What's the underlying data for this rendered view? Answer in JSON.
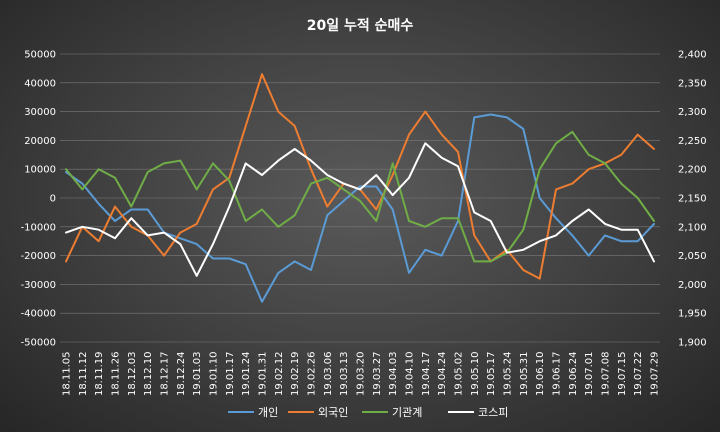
{
  "chart_data": {
    "type": "line",
    "title": "20일 누적 순매수",
    "xlabel": "",
    "ylabel": "",
    "y_left": {
      "min": -50000,
      "max": 50000,
      "step": 10000,
      "ticks": [
        "50000",
        "40000",
        "30000",
        "20000",
        "10000",
        "0",
        "-10000",
        "-20000",
        "-30000",
        "-40000",
        "-50000"
      ]
    },
    "y_right": {
      "min": 1900,
      "max": 2400,
      "step": 50,
      "ticks": [
        "2,400",
        "2,350",
        "2,300",
        "2,250",
        "2,200",
        "2,150",
        "2,100",
        "2,050",
        "2,000",
        "1,950",
        "1,900"
      ]
    },
    "x_labels": [
      "18.11.05",
      "18.11.12",
      "18.11.19",
      "18.11.26",
      "18.12.03",
      "18.12.10",
      "18.12.17",
      "18.12.24",
      "19.01.03",
      "19.01.10",
      "19.01.17",
      "19.01.24",
      "19.01.31",
      "19.02.12",
      "19.02.19",
      "19.02.26",
      "19.03.06",
      "19.03.13",
      "19.03.20",
      "19.03.27",
      "19.04.03",
      "19.04.10",
      "19.04.17",
      "19.04.24",
      "19.05.02",
      "19.05.10",
      "19.05.17",
      "19.05.24",
      "19.05.31",
      "19.06.10",
      "19.06.17",
      "19.06.24",
      "19.07.01",
      "19.07.08",
      "19.07.15",
      "19.07.22",
      "19.07.29"
    ],
    "grid": "horizontal",
    "legend_position": "bottom",
    "series": [
      {
        "name": "개인",
        "axis": "left",
        "color": "#5b9bd5",
        "values": [
          9000,
          5000,
          -2000,
          -8000,
          -4000,
          -4000,
          -12000,
          -14000,
          -16000,
          -21000,
          -21000,
          -23000,
          -36000,
          -26000,
          -22000,
          -25000,
          -6000,
          -1000,
          4000,
          4000,
          -4000,
          -26000,
          -18000,
          -20000,
          -8000,
          28000,
          29000,
          28000,
          24000,
          0,
          -7000,
          -13000,
          -20000,
          -13000,
          -15000,
          -15000,
          -9000
        ]
      },
      {
        "name": "외국인",
        "axis": "left",
        "color": "#ed7d31",
        "values": [
          -22000,
          -10000,
          -15000,
          -3000,
          -10000,
          -13000,
          -20000,
          -12000,
          -9000,
          3000,
          7000,
          25000,
          43000,
          30000,
          25000,
          10000,
          -3000,
          5000,
          3000,
          -4000,
          8000,
          22000,
          30000,
          22000,
          16000,
          -13000,
          -22000,
          -18000,
          -25000,
          -28000,
          3000,
          5000,
          10000,
          12000,
          15000,
          22000,
          17000
        ]
      },
      {
        "name": "기관계",
        "axis": "left",
        "color": "#70ad47",
        "values": [
          10000,
          3000,
          10000,
          7000,
          -3000,
          9000,
          12000,
          13000,
          3000,
          12000,
          6000,
          -8000,
          -4000,
          -10000,
          -6000,
          5000,
          7000,
          3000,
          -1000,
          -8000,
          12000,
          -8000,
          -10000,
          -7000,
          -7000,
          -22000,
          -22000,
          -19000,
          -11000,
          10000,
          19000,
          23000,
          15000,
          12000,
          5000,
          0,
          -8000
        ]
      },
      {
        "name": "코스피",
        "axis": "right",
        "color": "#ffffff",
        "values": [
          2090,
          2100,
          2095,
          2080,
          2115,
          2085,
          2090,
          2070,
          2015,
          2070,
          2135,
          2210,
          2190,
          2215,
          2235,
          2215,
          2190,
          2175,
          2165,
          2190,
          2155,
          2185,
          2245,
          2220,
          2205,
          2125,
          2110,
          2055,
          2060,
          2075,
          2085,
          2110,
          2130,
          2105,
          2095,
          2095,
          2040
        ]
      }
    ]
  }
}
